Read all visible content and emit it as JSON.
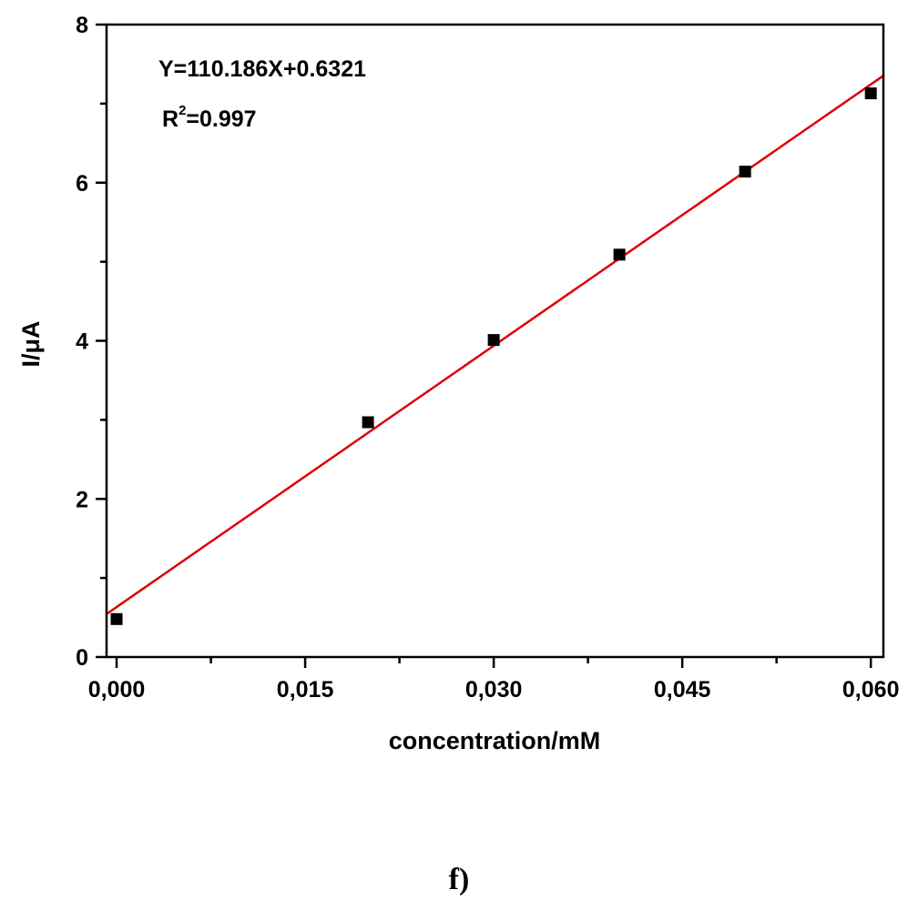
{
  "chart_data": {
    "type": "scatter",
    "xlabel": "concentration/mM",
    "ylabel": "I/μA",
    "xlim": [
      -0.0008,
      0.061
    ],
    "ylim": [
      0,
      8
    ],
    "x_ticks": [
      0.0,
      0.015,
      0.03,
      0.045,
      0.06
    ],
    "x_tick_labels": [
      "0,000",
      "0,015",
      "0,030",
      "0,045",
      "0,060"
    ],
    "x_minor_ticks": [
      0.0075,
      0.0225,
      0.0375,
      0.0525
    ],
    "y_ticks": [
      0,
      2,
      4,
      6,
      8
    ],
    "y_tick_labels": [
      "0",
      "2",
      "4",
      "6",
      "8"
    ],
    "y_minor_ticks": [
      1,
      3,
      5,
      7
    ],
    "grid": false,
    "series": [
      {
        "x": [
          0.0,
          0.02,
          0.03,
          0.04,
          0.05,
          0.06
        ],
        "y": [
          0.48,
          2.97,
          4.01,
          5.09,
          6.14,
          7.13
        ],
        "marker": "square",
        "color": "#000000"
      }
    ],
    "fit_line": {
      "slope": 110.186,
      "intercept": 0.6321,
      "color": "#e00000"
    },
    "annotations": {
      "equation": "Y=110.186X+0.6321",
      "r2_base": "R",
      "r2_sup": "2",
      "r2_value": "=0.997"
    }
  },
  "panel_label": "f)"
}
